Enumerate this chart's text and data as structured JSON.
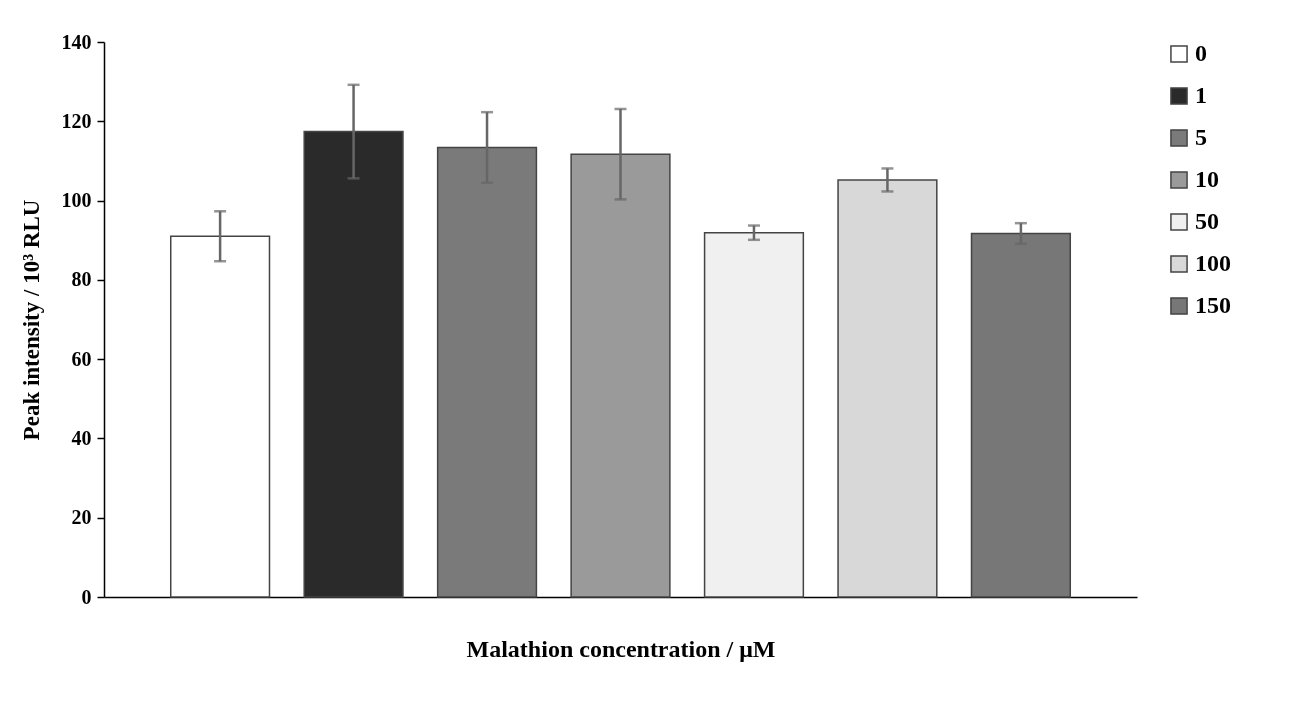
{
  "chart_data": {
    "type": "bar",
    "xlabel": "Malathion concentration / μM",
    "ylabel": "Peak intensity / 10³ RLU",
    "categories": [
      null,
      null,
      null,
      null,
      null,
      null,
      null
    ],
    "series": [
      {
        "name": "0",
        "color": "#ffffff",
        "values": [
          91.0,
          null,
          null,
          null,
          null,
          null,
          null
        ],
        "errors": [
          6.3,
          null,
          null,
          null,
          null,
          null,
          null
        ]
      },
      {
        "name": "1",
        "color": "#2a2a2a",
        "values": [
          null,
          117.4,
          null,
          null,
          null,
          null,
          null
        ],
        "errors": [
          null,
          11.8,
          null,
          null,
          null,
          null,
          null
        ]
      },
      {
        "name": "5",
        "color": "#7a7a7a",
        "values": [
          null,
          null,
          113.4,
          null,
          null,
          null,
          null
        ],
        "errors": [
          null,
          null,
          8.9,
          null,
          null,
          null,
          null
        ]
      },
      {
        "name": "10",
        "color": "#9a9a9a",
        "values": [
          null,
          null,
          null,
          111.7,
          null,
          null,
          null
        ],
        "errors": [
          null,
          null,
          null,
          11.4,
          null,
          null,
          null
        ]
      },
      {
        "name": "50",
        "color": "#f0f0f0",
        "values": [
          null,
          null,
          null,
          null,
          91.9,
          null,
          null
        ],
        "errors": [
          null,
          null,
          null,
          null,
          1.8,
          null,
          null
        ]
      },
      {
        "name": "100",
        "color": "#d8d8d8",
        "values": [
          null,
          null,
          null,
          null,
          null,
          105.2,
          null
        ],
        "errors": [
          null,
          null,
          null,
          null,
          null,
          2.9,
          null
        ]
      },
      {
        "name": "150",
        "color": "#777777",
        "values": [
          null,
          null,
          null,
          null,
          null,
          null,
          91.7
        ],
        "errors": [
          null,
          null,
          null,
          null,
          null,
          null,
          2.6
        ]
      }
    ],
    "ylim": [
      0,
      140
    ],
    "yticks": [
      0,
      20,
      40,
      60,
      80,
      100,
      120,
      140
    ],
    "tick_labels": "y",
    "legend": "right"
  }
}
